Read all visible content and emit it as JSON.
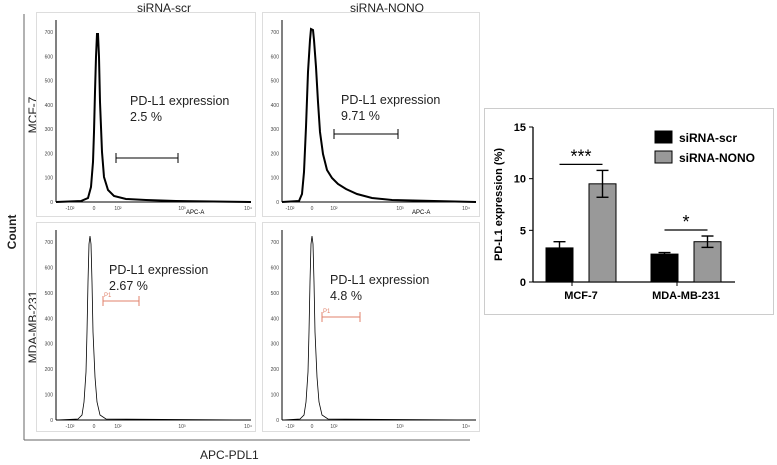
{
  "flow": {
    "column_titles": [
      "siRNA-scr",
      "siRNA-NONO"
    ],
    "row_labels": [
      "MCF-7",
      "MDA-MB-231"
    ],
    "y_axis_title": "Count",
    "x_axis_title": "APC-PDL1",
    "panels": [
      {
        "row": "MCF-7",
        "column": "siRNA-scr",
        "expression_label": "PD-L1 expression",
        "expression_value": "2.5 %",
        "x_tick_labels": [
          "-10²",
          "0",
          "10²",
          "10³",
          "10⁴"
        ],
        "x_axis_label": "APC-A",
        "y_tick_labels": [
          "0",
          "100",
          "200",
          "300",
          "400",
          "500",
          "600",
          "700"
        ],
        "gate_label": ""
      },
      {
        "row": "MCF-7",
        "column": "siRNA-NONO",
        "expression_label": "PD-L1 expression",
        "expression_value": "9.71 %",
        "x_tick_labels": [
          "-10²",
          "0",
          "10²",
          "10³",
          "10⁴"
        ],
        "x_axis_label": "APC-A",
        "y_tick_labels": [
          "0",
          "100",
          "200",
          "300",
          "400",
          "500",
          "600",
          "700"
        ],
        "gate_label": ""
      },
      {
        "row": "MDA-MB-231",
        "column": "siRNA-scr",
        "expression_label": "PD-L1 expression",
        "expression_value": "2.67 %",
        "x_tick_labels": [
          "-10²",
          "0",
          "10²",
          "10³",
          "10⁴"
        ],
        "x_axis_label": "",
        "y_tick_labels": [
          "0",
          "100",
          "200",
          "300",
          "400",
          "500",
          "600",
          "700"
        ],
        "gate_label": "P1"
      },
      {
        "row": "MDA-MB-231",
        "column": "siRNA-NONO",
        "expression_label": "PD-L1 expression",
        "expression_value": "4.8 %",
        "x_tick_labels": [
          "-10²",
          "0",
          "10²",
          "10³",
          "10⁴"
        ],
        "x_axis_label": "",
        "y_tick_labels": [
          "0",
          "100",
          "200",
          "300",
          "400",
          "500",
          "600",
          "700"
        ],
        "gate_label": "P1"
      }
    ]
  },
  "chart_data": [
    {
      "type": "bar",
      "title": "",
      "xlabel": "",
      "ylabel": "PD-L1 expression (%)",
      "ylim": [
        0,
        15
      ],
      "yticks": [
        0,
        5,
        10,
        15
      ],
      "categories": [
        "MCF-7",
        "MDA-MB-231"
      ],
      "series": [
        {
          "name": "siRNA-scr",
          "color": "#000000",
          "values": [
            3.3,
            2.7
          ],
          "errors": [
            0.6,
            0.15
          ]
        },
        {
          "name": "siRNA-NONO",
          "color": "#999999",
          "values": [
            9.5,
            3.9
          ],
          "errors": [
            1.3,
            0.55
          ]
        }
      ],
      "significance": [
        "***",
        "*"
      ],
      "legend_position": "top-right"
    }
  ],
  "colors": {
    "gate_red": "#e0826b",
    "axis": "#000000"
  }
}
